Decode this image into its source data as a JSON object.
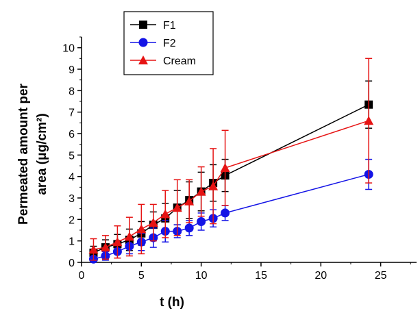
{
  "chart_data": {
    "type": "line",
    "xlabel": "t (h)",
    "ylabel_line1": "Permeated amount per",
    "ylabel_line2": "area (μg/cm²)",
    "xlim": [
      0,
      28
    ],
    "ylim": [
      0,
      10.5
    ],
    "x_ticks": [
      0,
      5,
      10,
      15,
      20,
      25
    ],
    "y_ticks": [
      0,
      1,
      2,
      3,
      4,
      5,
      6,
      7,
      8,
      9,
      10
    ],
    "grid": false,
    "legend_position": "top-left",
    "series": [
      {
        "name": "F1",
        "color": "#000000",
        "marker": "square",
        "x": [
          1,
          2,
          3,
          4,
          5,
          6,
          7,
          8,
          9,
          10,
          11,
          12,
          24
        ],
        "y": [
          0.45,
          0.7,
          0.85,
          1.05,
          1.35,
          1.75,
          2.05,
          2.55,
          2.9,
          3.3,
          3.7,
          4.05,
          7.35
        ],
        "err": [
          0.3,
          0.35,
          0.45,
          0.5,
          0.55,
          0.6,
          0.7,
          0.8,
          0.85,
          0.9,
          0.85,
          0.75,
          1.1
        ]
      },
      {
        "name": "F2",
        "color": "#1414e6",
        "marker": "circle",
        "x": [
          1,
          2,
          3,
          4,
          5,
          6,
          7,
          8,
          9,
          10,
          11,
          12,
          24
        ],
        "y": [
          0.15,
          0.3,
          0.5,
          0.75,
          0.95,
          1.15,
          1.45,
          1.45,
          1.6,
          1.9,
          2.05,
          2.3,
          4.1
        ],
        "err": [
          0.1,
          0.2,
          0.3,
          0.35,
          0.4,
          0.45,
          0.5,
          0.3,
          0.35,
          0.4,
          0.4,
          0.35,
          0.7
        ]
      },
      {
        "name": "Cream",
        "color": "#e61414",
        "marker": "triangle",
        "x": [
          1,
          2,
          3,
          4,
          5,
          6,
          7,
          8,
          9,
          10,
          11,
          12,
          24
        ],
        "y": [
          0.6,
          0.7,
          0.95,
          1.2,
          1.55,
          1.85,
          2.25,
          2.55,
          2.85,
          3.3,
          3.55,
          4.4,
          6.6
        ],
        "err": [
          0.5,
          0.55,
          0.75,
          0.9,
          1.15,
          0.85,
          1.1,
          1.3,
          1.0,
          1.15,
          1.75,
          1.75,
          2.9
        ]
      }
    ]
  }
}
